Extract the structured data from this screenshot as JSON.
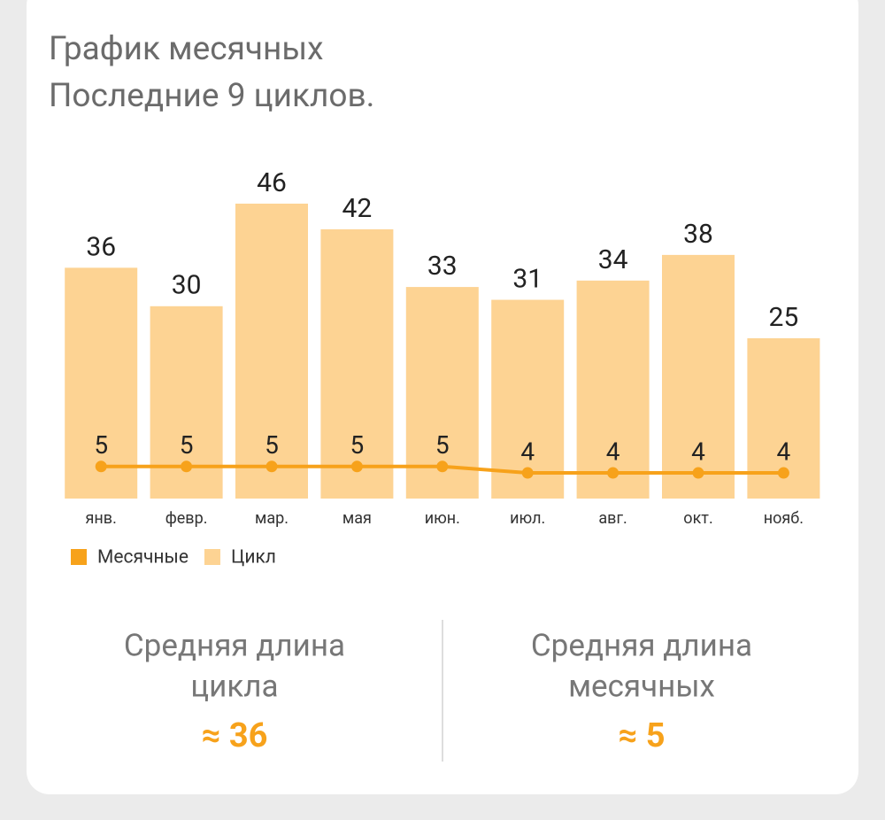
{
  "chart_data": {
    "type": "bar",
    "title": "График месячных",
    "subtitle": "Последние 9 циклов.",
    "categories": [
      "янв.",
      "февр.",
      "мар.",
      "мая",
      "июн.",
      "июл.",
      "авг.",
      "окт.",
      "нояб."
    ],
    "series": [
      {
        "name": "Месячные",
        "type": "line",
        "color": "#f7a21b",
        "values": [
          5,
          5,
          5,
          5,
          5,
          4,
          4,
          4,
          4
        ]
      },
      {
        "name": "Цикл",
        "type": "bar",
        "color": "#fdd393",
        "values": [
          36,
          30,
          46,
          42,
          33,
          31,
          34,
          38,
          25
        ]
      }
    ],
    "legend": "bottom-left"
  },
  "summary": [
    {
      "label_lines": [
        "Средняя длина",
        "цикла"
      ],
      "value": "≈ 36"
    },
    {
      "label_lines": [
        "Средняя длина",
        "месячных"
      ],
      "value": "≈ 5"
    }
  ]
}
